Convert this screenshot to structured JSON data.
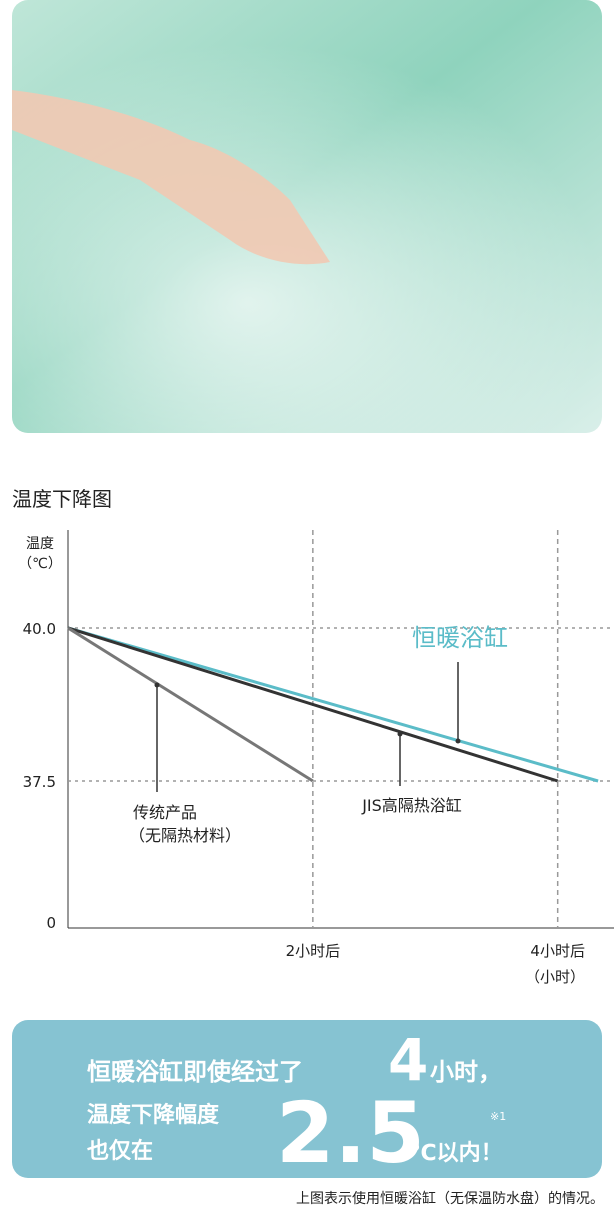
{
  "chart_data": {
    "type": "line",
    "title": "温度下降图",
    "y_label": "温度",
    "y_unit": "（℃）",
    "x_unit": "（小时）",
    "xlim": [
      0,
      4.46
    ],
    "xticks": [
      {
        "value": 2,
        "label": "2小时后"
      },
      {
        "value": 4,
        "label": "4小时后"
      }
    ],
    "ylim": [
      0,
      41.6
    ],
    "y_break": 37.5,
    "yticks": [
      0,
      37.5,
      {
        "value": 40,
        "label": "40.0"
      }
    ],
    "grid": true,
    "series": [
      {
        "name": "恒暖浴缸",
        "color": "#5bbcc8",
        "x": [
          0,
          4.33
        ],
        "values": [
          40,
          37.5
        ]
      },
      {
        "name": "JIS高隔热浴缸",
        "color": "#333333",
        "x": [
          0,
          4
        ],
        "values": [
          40,
          37.5
        ]
      },
      {
        "name": "传统产品",
        "color": "#777777",
        "x": [
          0,
          2
        ],
        "values": [
          40,
          37.5
        ]
      }
    ],
    "annotation": "（无隔热材料）"
  },
  "banner": {
    "line1": "恒暖浴缸即使经过了",
    "hours": "4",
    "hours_unit": "小时，",
    "line2": "温度下降幅度",
    "line3": "也仅在",
    "degrees": "2.5",
    "note_mark": "※1",
    "degrees_unit": "℃以内！"
  },
  "footnote": "上图表示使用恒暖浴缸（无保温防水盘）的情况。"
}
